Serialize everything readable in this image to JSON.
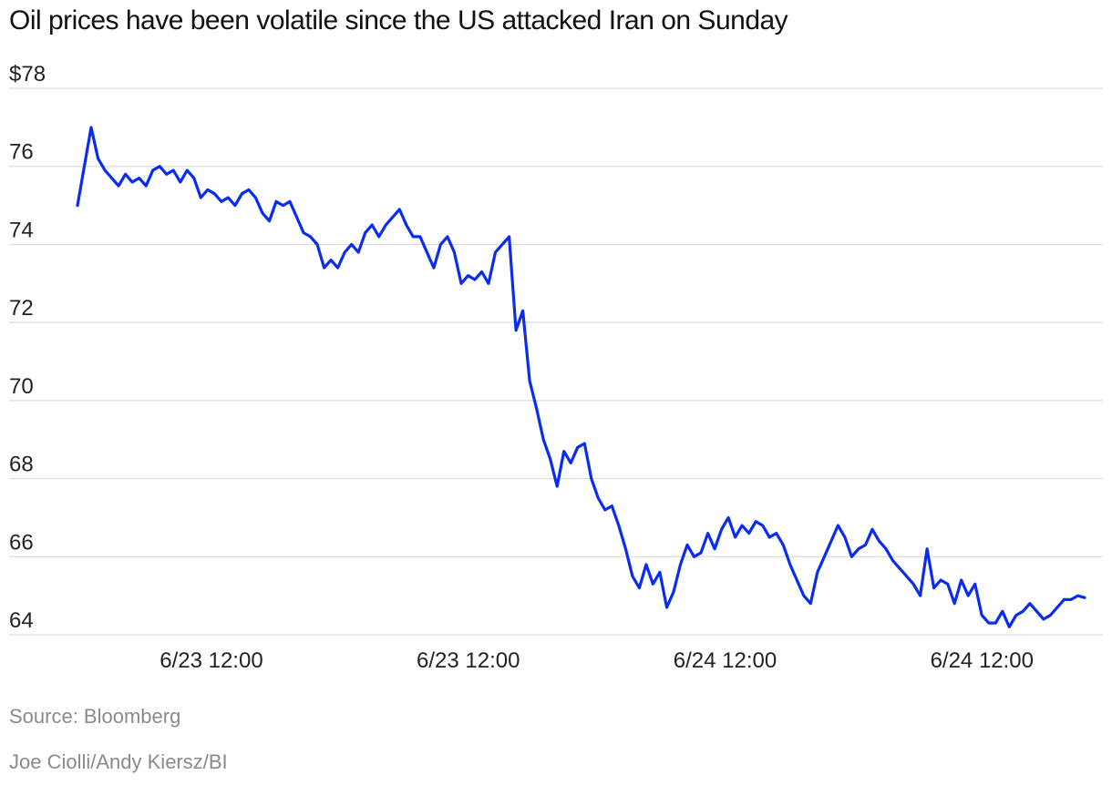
{
  "chart_data": {
    "type": "line",
    "title": "Oil prices have been volatile since the US attacked Iran on Sunday",
    "xlabel": "",
    "ylabel": "",
    "ylim": [
      64,
      78
    ],
    "y_ticks": [
      {
        "value": 78,
        "label": "$78"
      },
      {
        "value": 76,
        "label": "76"
      },
      {
        "value": 74,
        "label": "74"
      },
      {
        "value": 72,
        "label": "72"
      },
      {
        "value": 70,
        "label": "70"
      },
      {
        "value": 68,
        "label": "68"
      },
      {
        "value": 66,
        "label": "66"
      },
      {
        "value": 64,
        "label": "64"
      }
    ],
    "x_ticks": [
      {
        "position": 0.133,
        "label": "6/23 12:00"
      },
      {
        "position": 0.388,
        "label": "6/23 12:00"
      },
      {
        "position": 0.643,
        "label": "6/24 12:00"
      },
      {
        "position": 0.898,
        "label": "6/24 12:00"
      }
    ],
    "grid": true,
    "line_color": "#0a2cf0",
    "series": [
      {
        "values": [
          75.0,
          76.0,
          77.0,
          76.2,
          75.9,
          75.7,
          75.5,
          75.8,
          75.6,
          75.7,
          75.5,
          75.9,
          76.0,
          75.8,
          75.9,
          75.6,
          75.9,
          75.7,
          75.2,
          75.4,
          75.3,
          75.1,
          75.2,
          75.0,
          75.3,
          75.4,
          75.2,
          74.8,
          74.6,
          75.1,
          75.0,
          75.1,
          74.7,
          74.3,
          74.2,
          74.0,
          73.4,
          73.6,
          73.4,
          73.8,
          74.0,
          73.8,
          74.3,
          74.5,
          74.2,
          74.5,
          74.7,
          74.9,
          74.5,
          74.2,
          74.2,
          73.8,
          73.4,
          74.0,
          74.2,
          73.8,
          73.0,
          73.2,
          73.1,
          73.3,
          73.0,
          73.8,
          74.0,
          74.2,
          71.8,
          72.3,
          70.5,
          69.8,
          69.0,
          68.5,
          67.8,
          68.7,
          68.4,
          68.8,
          68.9,
          68.0,
          67.5,
          67.2,
          67.3,
          66.8,
          66.2,
          65.5,
          65.2,
          65.8,
          65.3,
          65.6,
          64.7,
          65.1,
          65.8,
          66.3,
          66.0,
          66.1,
          66.6,
          66.2,
          66.7,
          67.0,
          66.5,
          66.8,
          66.6,
          66.9,
          66.8,
          66.5,
          66.6,
          66.3,
          65.8,
          65.4,
          65.0,
          64.8,
          65.6,
          66.0,
          66.4,
          66.8,
          66.5,
          66.0,
          66.2,
          66.3,
          66.7,
          66.4,
          66.2,
          65.9,
          65.7,
          65.5,
          65.3,
          65.0,
          66.2,
          65.2,
          65.4,
          65.3,
          64.8,
          65.4,
          65.0,
          65.3,
          64.5,
          64.3,
          64.3,
          64.6,
          64.2,
          64.5,
          64.6,
          64.8,
          64.6,
          64.4,
          64.5,
          64.7,
          64.9,
          64.9,
          65.0,
          64.95
        ]
      }
    ]
  },
  "footer": {
    "source": "Source: Bloomberg",
    "credit": "Joe Ciolli/Andy Kiersz/BI"
  }
}
